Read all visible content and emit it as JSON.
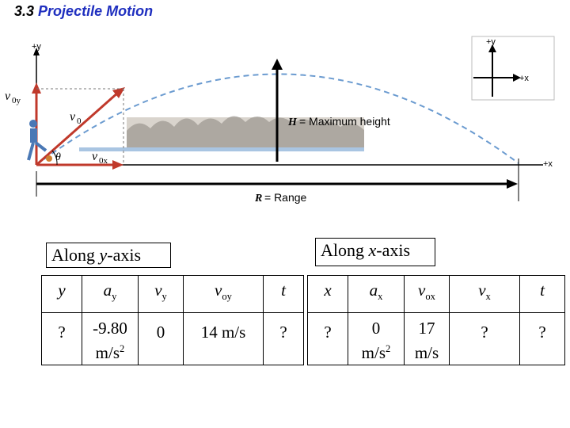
{
  "slide": {
    "number": "3.3",
    "topic": "Projectile Motion"
  },
  "figure": {
    "inset_y": "+y",
    "inset_x": "+x",
    "axis_y": "+y",
    "axis_x": "+x",
    "v0y": "0y",
    "v0": "0",
    "v0x": "0x",
    "theta": "θ",
    "height_symbol": "H",
    "height_text": "= Maximum height",
    "range_symbol": "R",
    "range_text": "= Range"
  },
  "along_y": {
    "label_prefix": "Along ",
    "label_axis": "y",
    "label_suffix": "-axis",
    "headers": [
      "y",
      "a",
      "v",
      "v",
      "t"
    ],
    "header_subs": [
      "",
      "y",
      "y",
      "oy",
      ""
    ],
    "values": [
      "?",
      "-9.80\nm/s",
      "0",
      "14 m/s",
      "?"
    ],
    "value_sups": [
      "",
      "2",
      "",
      "",
      ""
    ]
  },
  "along_x": {
    "label_prefix": "Along ",
    "label_axis": "x",
    "label_suffix": "-axis",
    "headers": [
      "x",
      "a",
      "v",
      "v",
      "t"
    ],
    "header_subs": [
      "",
      "x",
      "ox",
      "x",
      ""
    ],
    "values": [
      "?",
      "0\nm/s",
      "17\nm/s",
      "?",
      "?"
    ],
    "value_sups": [
      "",
      "2",
      "",
      "",
      ""
    ]
  }
}
